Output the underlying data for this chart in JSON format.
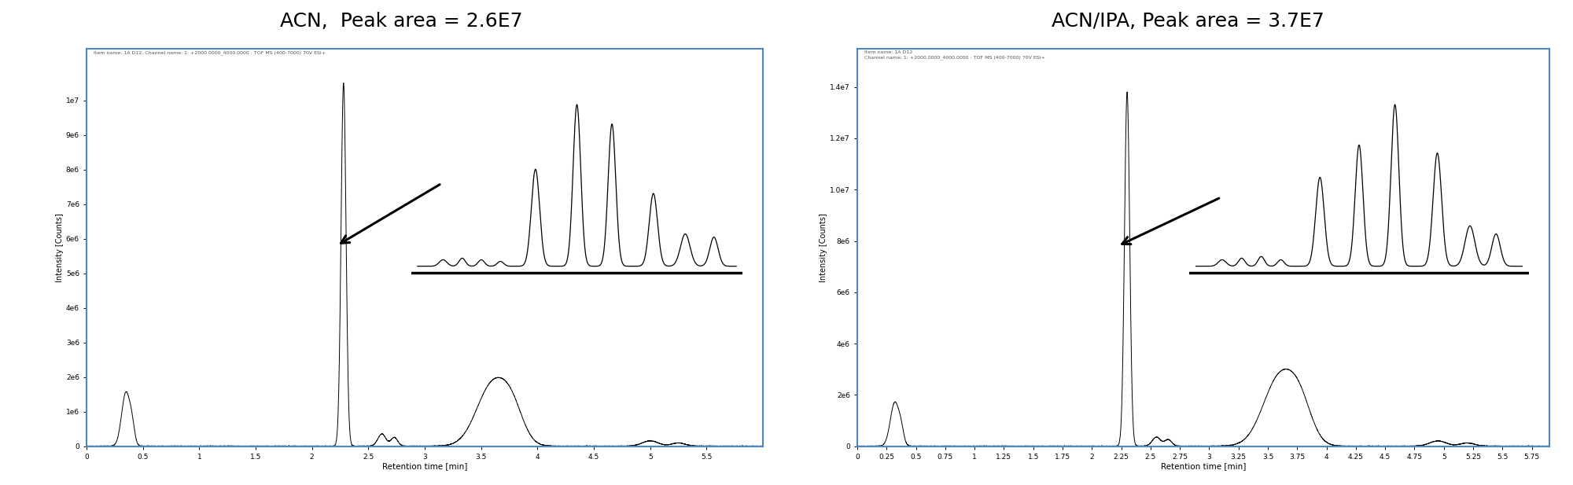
{
  "title_left": "ACN,  Peak area = 2.6E7",
  "title_right": "ACN/IPA, Peak area = 3.7E7",
  "title_fontsize": 18,
  "fig_bg": "#ffffff",
  "panel_bg": "#ffffff",
  "border_color": "#4a86c8",
  "header_text_left": "Item name: 1A D12, Channel name: 1: +2000.0000_4000.0000 : TOF MS (400-7000) 70V ESI+",
  "header_text_right": "Item name: 1A D12\nChannel name: 1: +2000.0000_4000.0000 : TOF MS (400-7000) 70V ESI+",
  "ylabel": "Intensity [Counts]",
  "xlabel": "Retention time [min]",
  "panel1": {
    "xlim": [
      0,
      6.0
    ],
    "ylim": [
      0,
      11500000.0
    ],
    "yticks": [
      0,
      1000000.0,
      2000000.0,
      3000000.0,
      4000000.0,
      5000000.0,
      6000000.0,
      7000000.0,
      8000000.0,
      9000000.0,
      10000000.0
    ],
    "ytick_labels": [
      "0",
      "1e6",
      "2e6",
      "3e6",
      "4e6",
      "5e6",
      "6e6",
      "7e6",
      "8e6",
      "9e6",
      "1e7"
    ],
    "xticks": [
      0,
      0.5,
      1.0,
      1.5,
      2.0,
      2.5,
      3.0,
      3.5,
      4.0,
      4.5,
      5.0,
      5.5
    ],
    "main_peak_x": 2.28,
    "main_peak_y": 10500000.0,
    "small_peak1_x": 0.35,
    "small_peak1_y": 1550000.0,
    "small_peak2_x": 2.62,
    "small_peak2_y": 350000.0,
    "small_peak3_x": 2.73,
    "small_peak3_y": 250000.0,
    "broad_peak_x": 3.6,
    "broad_peak_y": 1750000.0,
    "tail_peak_x": 5.0,
    "tail_peak_y": 150000.0,
    "tail_peak2_x": 5.25,
    "tail_peak2_y": 90000.0
  },
  "panel2": {
    "xlim": [
      0,
      5.9
    ],
    "ylim": [
      0,
      15500000.0
    ],
    "yticks": [
      0,
      2000000.0,
      4000000.0,
      6000000.0,
      8000000.0,
      10000000.0,
      12000000.0,
      14000000.0
    ],
    "ytick_labels": [
      "0",
      "2e6",
      "4e6",
      "6e6",
      "8e6",
      "1.0e7",
      "1.2e7",
      "1.4e7"
    ],
    "xticks": [
      0,
      0.25,
      0.5,
      0.75,
      1.0,
      1.25,
      1.5,
      1.75,
      2.0,
      2.25,
      2.5,
      2.75,
      3.0,
      3.25,
      3.5,
      3.75,
      4.0,
      4.25,
      4.5,
      4.75,
      5.0,
      5.25,
      5.5,
      5.75
    ],
    "main_peak_x": 2.3,
    "main_peak_y": 13800000.0,
    "small_peak1_x": 0.32,
    "small_peak1_y": 1700000.0,
    "small_peak2_x": 2.55,
    "small_peak2_y": 350000.0,
    "small_peak3_x": 2.65,
    "small_peak3_y": 250000.0,
    "broad_peak_x": 3.6,
    "broad_peak_y": 2650000.0,
    "tail_peak_x": 4.95,
    "tail_peak_y": 200000.0,
    "tail_peak2_x": 5.2,
    "tail_peak2_y": 120000.0
  }
}
